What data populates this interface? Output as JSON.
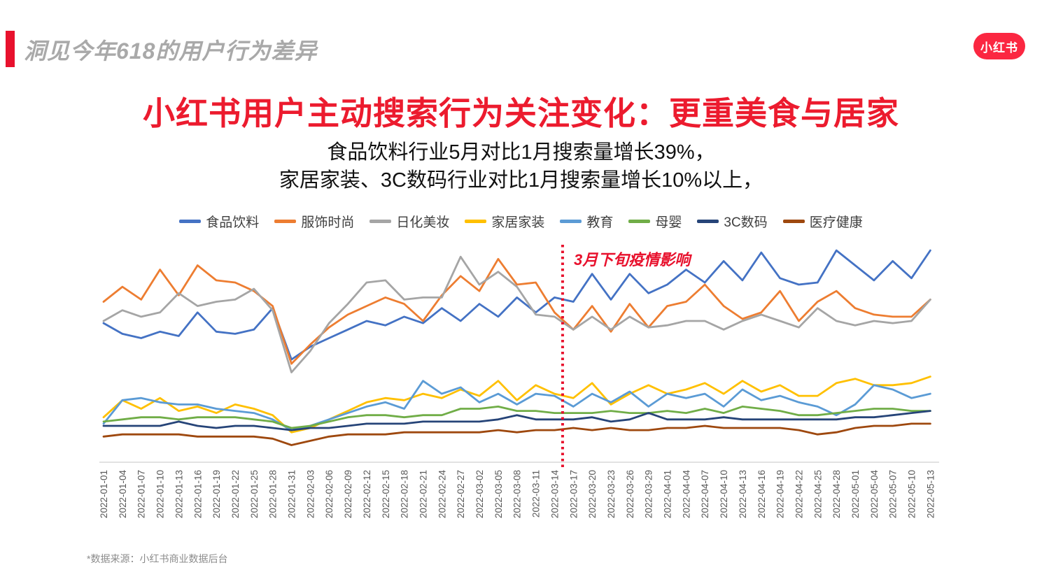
{
  "header": {
    "kicker": "洞见今年618的用户行为差异",
    "accent_color": "#E8112D"
  },
  "logo": {
    "text": "小红书",
    "bg_color": "#FB2741"
  },
  "headline": {
    "title": "小红书用户主动搜索行为关注变化：更重美食与居家",
    "color": "#EC1B2E"
  },
  "subtitle": {
    "line1": "食品饮料行业5月对比1月搜索量增长39%，",
    "line2": "家居家装、3C数码行业对比1月搜索量增长10%以上，"
  },
  "annotation": {
    "text": "3月下旬疫情影响",
    "color": "#E8112D"
  },
  "footnote": "*数据来源：小红书商业数据后台",
  "chart_data": {
    "type": "line",
    "title": "",
    "xlabel": "",
    "ylabel": "",
    "ylim": [
      0,
      105
    ],
    "grid": false,
    "legend_position": "top",
    "axis_line_color": "#D9D9D9",
    "tick_label_color": "#595959",
    "note": "y values are relative search-volume index (0-100 scale) estimated from pixel positions; no y axis shown in original",
    "event_line": {
      "index": 24.43,
      "date": "2022-03-15",
      "label": "3月下旬疫情影响",
      "style": "dotted",
      "color": "#E8112D"
    },
    "x": [
      "2022-01-01",
      "2022-01-04",
      "2022-01-07",
      "2022-01-10",
      "2022-01-13",
      "2022-01-16",
      "2022-01-19",
      "2022-01-22",
      "2022-01-25",
      "2022-01-28",
      "2022-01-31",
      "2022-02-03",
      "2022-02-06",
      "2022-02-09",
      "2022-02-12",
      "2022-02-15",
      "2022-02-18",
      "2022-02-21",
      "2022-02-24",
      "2022-02-27",
      "2022-03-02",
      "2022-03-05",
      "2022-03-08",
      "2022-03-11",
      "2022-03-14",
      "2022-03-17",
      "2022-03-20",
      "2022-03-23",
      "2022-03-26",
      "2022-03-29",
      "2022-04-01",
      "2022-04-04",
      "2022-04-07",
      "2022-04-10",
      "2022-04-13",
      "2022-04-16",
      "2022-04-19",
      "2022-04-22",
      "2022-04-25",
      "2022-04-28",
      "2022-05-01",
      "2022-05-04",
      "2022-05-07",
      "2022-05-10",
      "2022-05-13"
    ],
    "series": [
      {
        "name": "食品饮料",
        "color": "#4472C4",
        "values": [
          65,
          60,
          58,
          61,
          59,
          70,
          61,
          60,
          62,
          72,
          48,
          54,
          58,
          62,
          66,
          64,
          68,
          65,
          72,
          66,
          74,
          68,
          77,
          70,
          77,
          75,
          88,
          76,
          88,
          79,
          83,
          90,
          84,
          94,
          85,
          98,
          86,
          83,
          84,
          99,
          92,
          85,
          94,
          86,
          99
        ]
      },
      {
        "name": "服饰时尚",
        "color": "#ED7D31",
        "values": [
          75,
          82,
          76,
          90,
          78,
          92,
          85,
          84,
          80,
          73,
          46,
          55,
          63,
          69,
          73,
          77,
          74,
          66,
          78,
          87,
          80,
          95,
          83,
          84,
          70,
          62,
          73,
          61,
          74,
          63,
          73,
          75,
          83,
          73,
          67,
          70,
          80,
          66,
          75,
          80,
          72,
          69,
          68,
          68,
          76
        ]
      },
      {
        "name": "日化美妆",
        "color": "#A5A5A5",
        "values": [
          66,
          71,
          68,
          70,
          79,
          73,
          75,
          76,
          81,
          71,
          42,
          52,
          65,
          74,
          84,
          85,
          76,
          77,
          77,
          96,
          83,
          89,
          82,
          69,
          68,
          62,
          68,
          62,
          68,
          63,
          64,
          66,
          66,
          62,
          66,
          69,
          66,
          63,
          72,
          66,
          64,
          66,
          65,
          66,
          76
        ]
      },
      {
        "name": "家居家装",
        "color": "#FFC000",
        "values": [
          21,
          29,
          25,
          30,
          24,
          26,
          23,
          27,
          25,
          22,
          14,
          16,
          20,
          24,
          28,
          30,
          29,
          32,
          30,
          34,
          31,
          38,
          29,
          36,
          32,
          30,
          37,
          27,
          32,
          36,
          32,
          34,
          37,
          32,
          38,
          33,
          36,
          31,
          31,
          37,
          39,
          36,
          36,
          37,
          40
        ]
      },
      {
        "name": "教育",
        "color": "#5B9BD5",
        "values": [
          18,
          29,
          30,
          28,
          27,
          27,
          25,
          24,
          23,
          20,
          15,
          17,
          20,
          23,
          26,
          28,
          25,
          38,
          32,
          35,
          28,
          32,
          27,
          32,
          31,
          26,
          32,
          28,
          33,
          26,
          32,
          30,
          32,
          26,
          34,
          29,
          31,
          28,
          26,
          22,
          27,
          36,
          34,
          30,
          32
        ]
      },
      {
        "name": "母婴",
        "color": "#70AD47",
        "values": [
          19,
          20,
          21,
          21,
          20,
          21,
          21,
          21,
          20,
          19,
          16,
          17,
          19,
          21,
          22,
          22,
          21,
          22,
          22,
          25,
          25,
          26,
          24,
          24,
          23,
          23,
          23,
          24,
          23,
          23,
          24,
          23,
          25,
          23,
          26,
          25,
          24,
          22,
          22,
          23,
          24,
          25,
          25,
          24,
          24
        ]
      },
      {
        "name": "3C数码",
        "color": "#264478",
        "values": [
          17,
          17,
          17,
          17,
          19,
          17,
          16,
          17,
          17,
          16,
          15,
          16,
          16,
          17,
          18,
          18,
          18,
          19,
          19,
          19,
          19,
          20,
          22,
          20,
          20,
          20,
          21,
          19,
          20,
          23,
          20,
          20,
          20,
          21,
          20,
          20,
          20,
          20,
          20,
          20,
          21,
          21,
          22,
          23,
          24
        ]
      },
      {
        "name": "医疗健康",
        "color": "#9E480E",
        "values": [
          12,
          13,
          13,
          13,
          13,
          12,
          12,
          12,
          12,
          11,
          8,
          10,
          12,
          13,
          13,
          13,
          14,
          14,
          14,
          14,
          14,
          15,
          14,
          15,
          15,
          16,
          15,
          16,
          15,
          15,
          16,
          16,
          17,
          16,
          16,
          16,
          16,
          15,
          13,
          14,
          16,
          17,
          17,
          18,
          18
        ]
      }
    ]
  }
}
